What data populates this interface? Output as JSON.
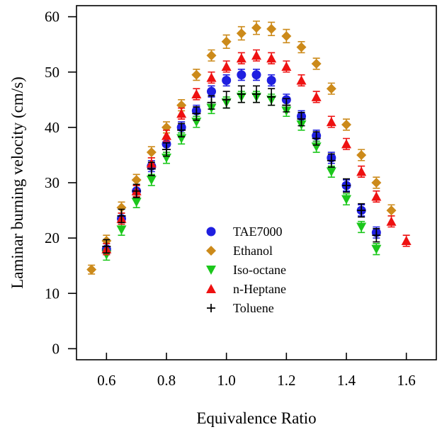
{
  "chart_data": {
    "type": "scatter",
    "xlabel": "Equivalence Ratio",
    "ylabel": "Laminar burning velocity (cm/s)",
    "xlim": [
      0.5,
      1.7
    ],
    "ylim": [
      -2,
      62
    ],
    "xticks": [
      0.6,
      0.8,
      1.0,
      1.2,
      1.4,
      1.6
    ],
    "xtick_labels": [
      "0.6",
      "0.8",
      "1.0",
      "1.2",
      "1.4",
      "1.6"
    ],
    "yticks": [
      0,
      10,
      20,
      30,
      40,
      50,
      60
    ],
    "ytick_labels": [
      "0",
      "10",
      "20",
      "30",
      "40",
      "50",
      "60"
    ],
    "grid": false,
    "legend_position": "center-left",
    "series": [
      {
        "name": "TAE7000",
        "marker": "circle",
        "color": "#1f1fe0",
        "x": [
          0.6,
          0.65,
          0.7,
          0.75,
          0.8,
          0.85,
          0.9,
          0.95,
          1.0,
          1.05,
          1.1,
          1.15,
          1.2,
          1.25,
          1.3,
          1.35,
          1.4,
          1.45,
          1.5
        ],
        "y": [
          18,
          23.5,
          28.5,
          33,
          37,
          40,
          43,
          46.5,
          48.5,
          49.5,
          49.5,
          48.5,
          45,
          42,
          38.5,
          34.5,
          29.5,
          25,
          21
        ],
        "err": [
          1,
          1,
          1,
          1,
          1,
          1,
          1,
          1,
          1,
          1,
          1,
          1,
          1,
          1,
          1,
          1,
          1,
          1,
          1
        ]
      },
      {
        "name": "Ethanol",
        "marker": "diamond",
        "color": "#cc8a1a",
        "x": [
          0.55,
          0.6,
          0.65,
          0.7,
          0.75,
          0.8,
          0.85,
          0.9,
          0.95,
          1.0,
          1.05,
          1.1,
          1.15,
          1.2,
          1.25,
          1.3,
          1.35,
          1.4,
          1.45,
          1.5,
          1.55
        ],
        "y": [
          14.3,
          19.5,
          25.5,
          30.5,
          35.5,
          40,
          44,
          49.5,
          53,
          55.5,
          57,
          58,
          57.8,
          56.5,
          54.5,
          51.5,
          47,
          40.5,
          35,
          30,
          25
        ],
        "err": [
          0.8,
          1,
          1,
          1,
          1,
          1,
          1,
          1,
          1,
          1.2,
          1.2,
          1.2,
          1.2,
          1.2,
          1,
          1,
          1,
          1,
          1,
          1,
          1
        ]
      },
      {
        "name": "Iso-octane",
        "marker": "triangle-down",
        "color": "#1bc71b",
        "x": [
          0.6,
          0.65,
          0.7,
          0.75,
          0.8,
          0.85,
          0.9,
          0.95,
          1.0,
          1.05,
          1.1,
          1.15,
          1.2,
          1.25,
          1.3,
          1.35,
          1.4,
          1.45,
          1.5
        ],
        "y": [
          17,
          21.5,
          26.5,
          30.5,
          34.5,
          38,
          41,
          43.5,
          44.5,
          45.5,
          45.5,
          45,
          43,
          40.5,
          36.5,
          32,
          27,
          22,
          18
        ],
        "err": [
          1,
          1,
          1,
          1,
          1,
          1,
          1,
          1,
          1,
          1,
          1,
          1,
          1,
          1,
          1,
          1,
          1,
          1,
          1
        ]
      },
      {
        "name": "n-Heptane",
        "marker": "triangle-up",
        "color": "#ee1111",
        "x": [
          0.6,
          0.65,
          0.7,
          0.75,
          0.8,
          0.85,
          0.9,
          0.95,
          1.0,
          1.05,
          1.1,
          1.15,
          1.2,
          1.25,
          1.3,
          1.35,
          1.4,
          1.45,
          1.5,
          1.55,
          1.6
        ],
        "y": [
          18,
          23.5,
          28.5,
          33.5,
          38.5,
          42.5,
          46,
          49,
          51,
          52.5,
          53,
          52.5,
          51,
          48.5,
          45.5,
          41,
          37,
          32,
          27.5,
          23,
          19.5
        ],
        "err": [
          1,
          1,
          1,
          1,
          1,
          1,
          1,
          1,
          1,
          1,
          1,
          1,
          1,
          1,
          1,
          1,
          1,
          1,
          1,
          1,
          1
        ]
      },
      {
        "name": "Toluene",
        "marker": "plus",
        "color": "#000000",
        "x": [
          0.6,
          0.65,
          0.7,
          0.75,
          0.8,
          0.85,
          0.9,
          0.95,
          1.0,
          1.05,
          1.1,
          1.15,
          1.2,
          1.25,
          1.3,
          1.35,
          1.4,
          1.45,
          1.5
        ],
        "y": [
          18.5,
          24,
          28.5,
          32.5,
          36,
          39.5,
          42.5,
          44.5,
          45,
          46,
          46,
          45.5,
          44,
          41.5,
          38,
          34,
          29.5,
          25,
          20.5
        ],
        "err": [
          1.2,
          1.2,
          1.2,
          1.2,
          1.2,
          1.2,
          1.2,
          1.2,
          1.5,
          1.5,
          1.5,
          1.5,
          1.2,
          1.2,
          1.2,
          1.2,
          1.2,
          1.2,
          1.2
        ]
      }
    ]
  }
}
